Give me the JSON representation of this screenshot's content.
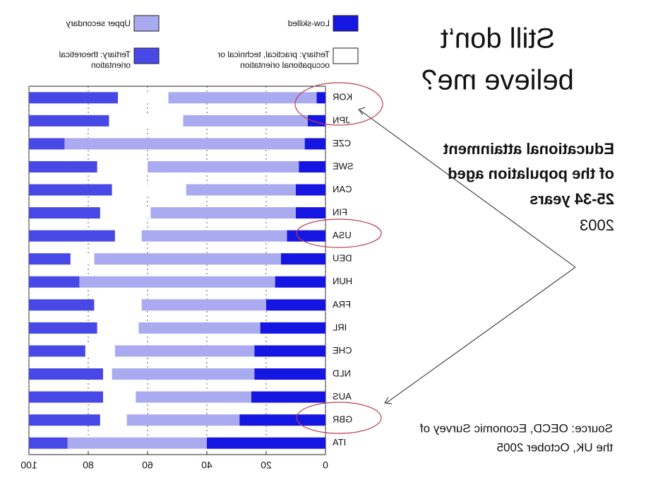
{
  "slide": {
    "heading": [
      "Still don‘t",
      "believe me?"
    ],
    "subtitle": [
      "Educational attainment",
      "of the population aged",
      "25-34 years"
    ],
    "year": "2003",
    "source": [
      "Source: OECD, Economic Survey of",
      "the UK, October 2005"
    ]
  },
  "chart_data": {
    "type": "stacked_bar_horizontal",
    "categories": [
      "KOR",
      "JPN",
      "CZE",
      "SWE",
      "CAN",
      "FIN",
      "USA",
      "DEU",
      "HUN",
      "FRA",
      "IRL",
      "CHE",
      "NLD",
      "AUS",
      "GBR",
      "ITA"
    ],
    "series": [
      {
        "name": "Low-skilled",
        "color": "#1616e2",
        "values": [
          3,
          6,
          7,
          9,
          10,
          10,
          13,
          15,
          17,
          20,
          22,
          24,
          24,
          25,
          29,
          40
        ]
      },
      {
        "name": "Upper secondary",
        "color": "#aaaaf0",
        "values": [
          50,
          42,
          81,
          51,
          37,
          49,
          49,
          63,
          66,
          42,
          41,
          47,
          48,
          39,
          38,
          47
        ]
      },
      {
        "name": "Tertiary: practical, technical or occupational orientation",
        "color": "#ffffff",
        "values": [
          17,
          25,
          0,
          17,
          25,
          17,
          9,
          8,
          0,
          16,
          14,
          10,
          3,
          11,
          9,
          0
        ]
      },
      {
        "name": "Tertiary: theoretical orientation",
        "color": "#4848e6",
        "values": [
          30,
          27,
          12,
          23,
          28,
          24,
          29,
          14,
          17,
          22,
          23,
          19,
          25,
          25,
          24,
          13
        ]
      }
    ],
    "xlim": [
      0,
      100
    ],
    "xticks": [
      0,
      20,
      40,
      60,
      80,
      100
    ],
    "grid": true,
    "mirrored": true
  }
}
